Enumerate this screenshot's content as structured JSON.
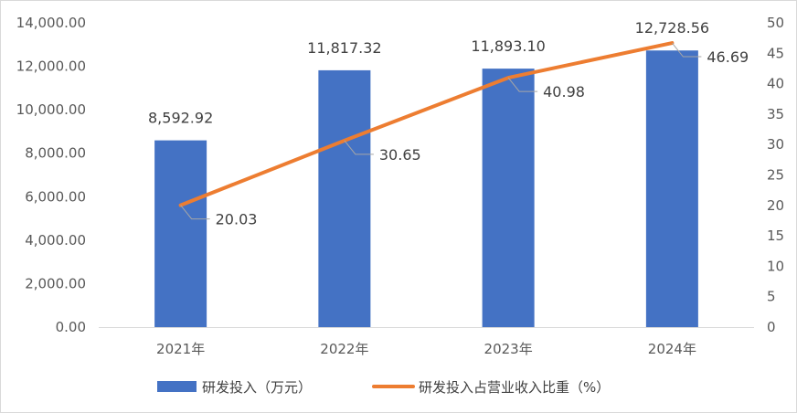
{
  "chart_data": {
    "type": "bar+line",
    "categories": [
      "2021年",
      "2022年",
      "2023年",
      "2024年"
    ],
    "series": [
      {
        "name": "研发投入（万元）",
        "type": "bar",
        "axis": "left",
        "color": "#4472C4",
        "values": [
          8592.92,
          11817.32,
          11893.1,
          12728.56
        ],
        "labels": [
          "8,592.92",
          "11,817.32",
          "11,893.10",
          "12,728.56"
        ]
      },
      {
        "name": "研发投入占营业收入比重（%）",
        "type": "line",
        "axis": "right",
        "color": "#ED7D31",
        "values": [
          20.03,
          30.65,
          40.98,
          46.69
        ],
        "labels": [
          "20.03",
          "30.65",
          "40.98",
          "46.69"
        ]
      }
    ],
    "y_left": {
      "range": [
        0,
        14000
      ],
      "ticks": [
        0,
        2000,
        4000,
        6000,
        8000,
        10000,
        12000,
        14000
      ],
      "tick_labels": [
        "0.00",
        "2,000.00",
        "4,000.00",
        "6,000.00",
        "8,000.00",
        "10,000.00",
        "12,000.00",
        "14,000.00"
      ]
    },
    "y_right": {
      "range": [
        0,
        50
      ],
      "ticks": [
        0,
        5,
        10,
        15,
        20,
        25,
        30,
        35,
        40,
        45,
        50
      ],
      "tick_labels": [
        "0",
        "5",
        "10",
        "15",
        "20",
        "25",
        "30",
        "35",
        "40",
        "45",
        "50"
      ]
    },
    "grid": false,
    "legend_position": "bottom"
  }
}
